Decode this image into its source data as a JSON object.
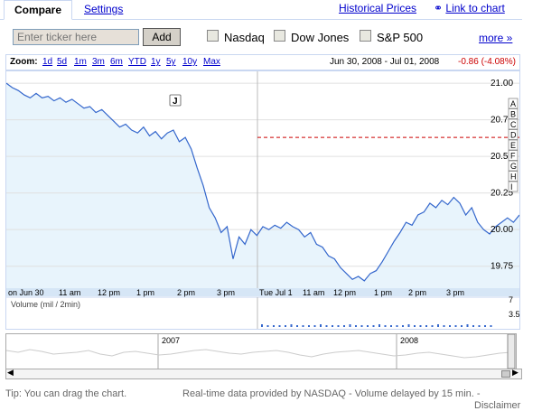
{
  "tabs": {
    "compare": "Compare",
    "settings": "Settings"
  },
  "links": {
    "historical": "Historical Prices",
    "link_to_chart": "Link to chart",
    "more": "more »"
  },
  "compare": {
    "ticker_placeholder": "Enter ticker here",
    "add_label": "Add",
    "options": [
      "Nasdaq",
      "Dow Jones",
      "S&P 500"
    ]
  },
  "zoom": {
    "label": "Zoom:",
    "options": [
      "1d",
      "5d",
      "1m",
      "3m",
      "6m",
      "YTD",
      "1y",
      "5y",
      "10y",
      "Max"
    ],
    "date_from": "Jun 30, 2008",
    "date_sep": "-",
    "date_to": "Jul 01, 2008",
    "change": "-0.86 (-4.08%)"
  },
  "chart_data": {
    "type": "area",
    "y_ticks": [
      "21.00",
      "20.75",
      "20.50",
      "20.25",
      "20.00",
      "19.75"
    ],
    "ylim": [
      19.6,
      21.05
    ],
    "x_ticks": [
      "on Jun 30",
      "11 am",
      "12 pm",
      "1 pm",
      "2 pm",
      "3 pm",
      "Tue Jul 1",
      "11 am",
      "12 pm",
      "1 pm",
      "2 pm",
      "3 pm"
    ],
    "series": [
      {
        "values": [
          21.0,
          20.97,
          20.95,
          20.92,
          20.9,
          20.93,
          20.9,
          20.91,
          20.88,
          20.9,
          20.87,
          20.89,
          20.86,
          20.83,
          20.84,
          20.8,
          20.82,
          20.78,
          20.74,
          20.7,
          20.72,
          20.68,
          20.66,
          20.7,
          20.64,
          20.67,
          20.62,
          20.66,
          20.68,
          20.6,
          20.63,
          20.55,
          20.42,
          20.3,
          20.15,
          20.08,
          19.98,
          20.02,
          19.8,
          19.95,
          19.9,
          20.0,
          19.96,
          20.02,
          20.0,
          20.03,
          20.01,
          20.05,
          20.02,
          20.0,
          19.95,
          19.98,
          19.9,
          19.88,
          19.82,
          19.8,
          19.74,
          19.7,
          19.66,
          19.68,
          19.65,
          19.7,
          19.72,
          19.78,
          19.85,
          19.92,
          19.98,
          20.05,
          20.03,
          20.1,
          20.12,
          20.18,
          20.15,
          20.2,
          20.17,
          20.22,
          20.18,
          20.1,
          20.15,
          20.05,
          20.0,
          19.97,
          20.02,
          20.05,
          20.08,
          20.05,
          20.1
        ]
      }
    ],
    "previous_close": 20.63,
    "flag_letters": [
      "A",
      "B",
      "C",
      "D",
      "E",
      "F",
      "G",
      "H",
      "I"
    ],
    "news_marker": "J",
    "volume_label": "Volume (mil / 2min)",
    "volume_ticks": [
      "7",
      "3.5"
    ],
    "overview_ticks": [
      "2007",
      "2008"
    ]
  },
  "footer": {
    "tip": "Tip: You can drag the chart.",
    "source": "Real-time data provided by NASDAQ  -  Volume delayed by 15 min.  -",
    "disclaimer": "Disclaimer"
  },
  "colors": {
    "line": "#3366cc",
    "fill": "#e8f4fc",
    "prev_close": "#cc0000",
    "link": "#0000cc"
  }
}
